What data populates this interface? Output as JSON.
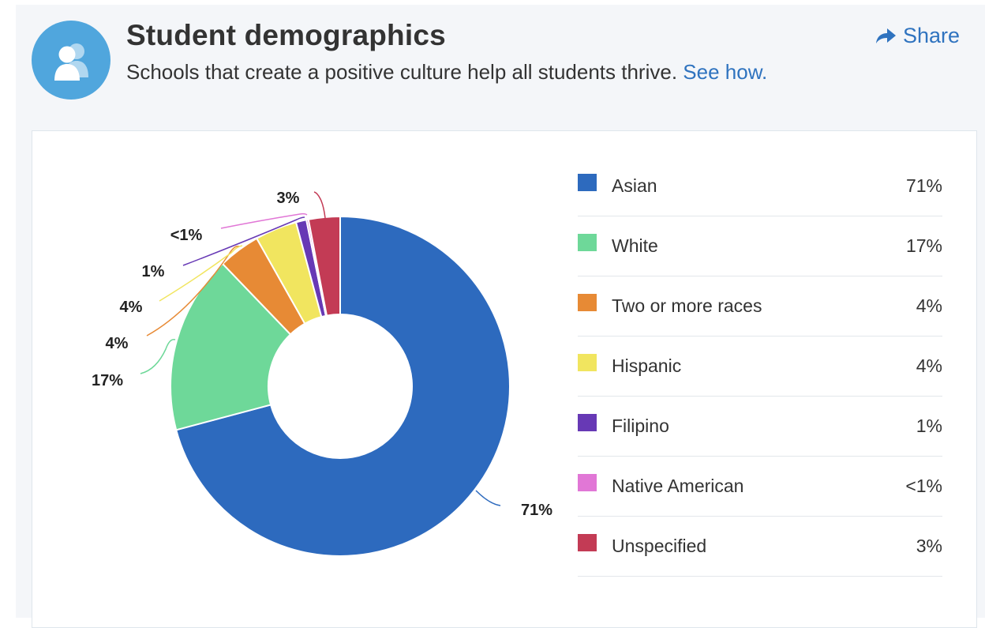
{
  "header": {
    "title": "Student demographics",
    "subtitle": "Schools that create a positive culture help all students thrive.",
    "see_how_link": "See how.",
    "share_label": "Share",
    "avatar_icon": "people-icon",
    "share_icon": "share-arrow-icon"
  },
  "colors": {
    "accent": "#2f73bf",
    "avatar_bg": "#50a6dd"
  },
  "chart_data": {
    "type": "pie",
    "donut": true,
    "legend_position": "right",
    "categories": [
      "Asian",
      "White",
      "Two or more races",
      "Hispanic",
      "Filipino",
      "Native American",
      "Unspecified"
    ],
    "values": [
      71,
      17,
      4,
      4,
      1,
      0.2,
      3
    ],
    "value_labels": [
      "71%",
      "17%",
      "4%",
      "4%",
      "1%",
      "<1%",
      "3%"
    ],
    "colors": [
      "#2d6abe",
      "#6ed899",
      "#e78a35",
      "#f1e55f",
      "#6739b5",
      "#e177d6",
      "#c33b55"
    ]
  }
}
